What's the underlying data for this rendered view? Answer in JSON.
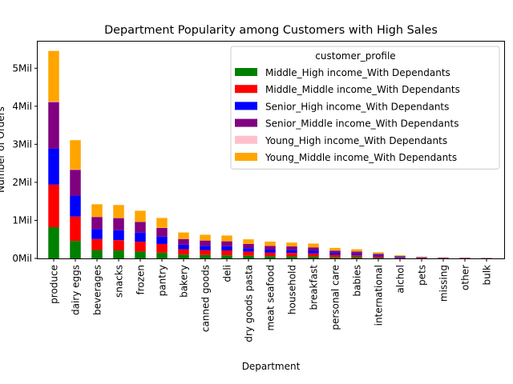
{
  "chart_data": {
    "type": "bar",
    "stacked": true,
    "title": "Department Popularity among Customers with High Sales",
    "xlabel": "Department",
    "ylabel": "Number of Orders",
    "ylim": [
      0,
      5700000
    ],
    "yticks": [
      {
        "value": 0,
        "label": "0Mil"
      },
      {
        "value": 1000000,
        "label": "1Mil"
      },
      {
        "value": 2000000,
        "label": "2Mil"
      },
      {
        "value": 3000000,
        "label": "3Mil"
      },
      {
        "value": 4000000,
        "label": "4Mil"
      },
      {
        "value": 5000000,
        "label": "5Mil"
      }
    ],
    "grid": false,
    "legend": {
      "title": "customer_profile",
      "placement": "top-right"
    },
    "categories": [
      "produce",
      "dairy eggs",
      "beverages",
      "snacks",
      "frozen",
      "pantry",
      "bakery",
      "canned goods",
      "deli",
      "dry goods pasta",
      "meat seafood",
      "household",
      "breakfast",
      "personal care",
      "babies",
      "international",
      "alchol",
      "pets",
      "missing",
      "other",
      "bulk"
    ],
    "series": [
      {
        "name": "Middle_High income_With Dependants",
        "color": "#008000",
        "values": [
          820000,
          460000,
          220000,
          210000,
          180000,
          150000,
          100000,
          90000,
          80000,
          70000,
          60000,
          55000,
          50000,
          35000,
          40000,
          20000,
          10000,
          5000,
          3000,
          3000,
          2000
        ]
      },
      {
        "name": "Middle_Middle income_With Dependants",
        "color": "#ff0000",
        "values": [
          1120000,
          640000,
          290000,
          270000,
          260000,
          230000,
          140000,
          130000,
          130000,
          110000,
          90000,
          90000,
          80000,
          60000,
          50000,
          30000,
          15000,
          8000,
          5000,
          5000,
          3000
        ]
      },
      {
        "name": "Senior_High income_With Dependants",
        "color": "#0000ff",
        "values": [
          950000,
          550000,
          260000,
          260000,
          240000,
          190000,
          120000,
          110000,
          110000,
          90000,
          80000,
          80000,
          70000,
          50000,
          40000,
          30000,
          15000,
          10000,
          6000,
          4000,
          2000
        ]
      },
      {
        "name": "Senior_Middle income_With Dependants",
        "color": "#800080",
        "values": [
          1220000,
          680000,
          320000,
          320000,
          280000,
          230000,
          150000,
          140000,
          130000,
          110000,
          100000,
          90000,
          90000,
          60000,
          50000,
          40000,
          20000,
          12000,
          8000,
          6000,
          4000
        ]
      },
      {
        "name": "Young_High income_With Dependants",
        "color": "#ffc0cb",
        "values": [
          15000,
          8000,
          4000,
          4000,
          3000,
          3000,
          2000,
          2000,
          2000,
          1500,
          1000,
          1000,
          1000,
          1000,
          800,
          500,
          300,
          200,
          100,
          100,
          50
        ]
      },
      {
        "name": "Young_Middle income_With Dependants",
        "color": "#ffa500",
        "values": [
          1330000,
          770000,
          330000,
          340000,
          290000,
          260000,
          170000,
          150000,
          150000,
          120000,
          110000,
          100000,
          100000,
          70000,
          60000,
          40000,
          20000,
          10000,
          7000,
          6000,
          4000
        ]
      }
    ]
  }
}
